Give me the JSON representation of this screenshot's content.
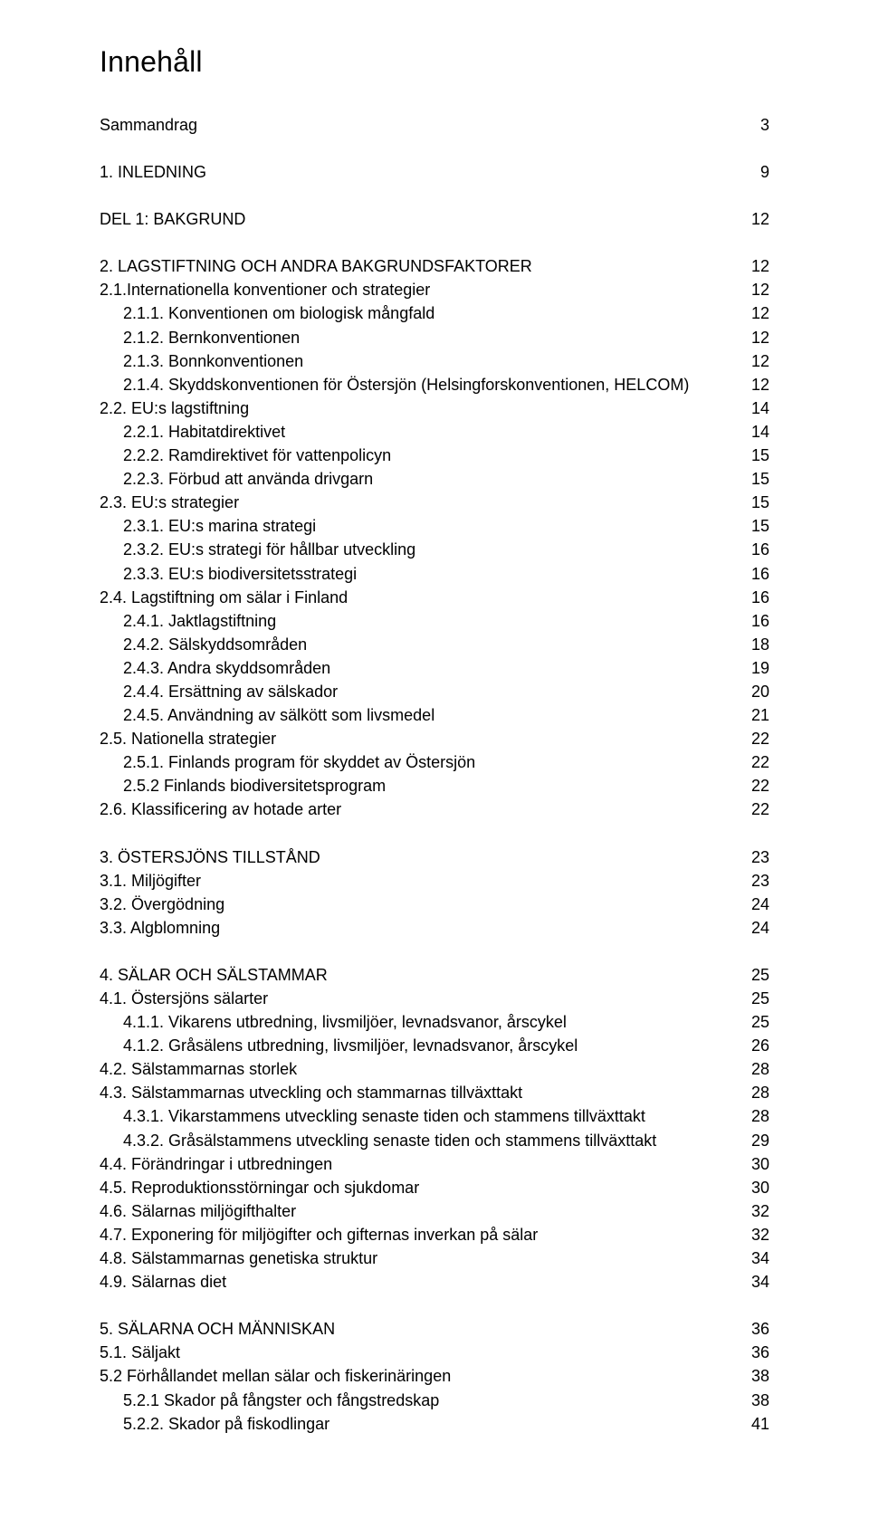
{
  "title": "Innehåll",
  "font": {
    "body_pt": 18,
    "title_pt": 32,
    "color": "#000000",
    "background": "#ffffff"
  },
  "toc": [
    {
      "label": "Sammandrag",
      "page": 3,
      "indent": 0,
      "gap_after": true
    },
    {
      "label": "1. INLEDNING",
      "page": 9,
      "indent": 0,
      "gap_after": true
    },
    {
      "label": "DEL 1: BAKGRUND",
      "page": 12,
      "indent": 0,
      "gap_after": true
    },
    {
      "label": "2. LAGSTIFTNING OCH ANDRA BAKGRUNDSFAKTORER",
      "page": 12,
      "indent": 0
    },
    {
      "label": "2.1.Internationella konventioner och strategier",
      "page": 12,
      "indent": 0
    },
    {
      "label": "2.1.1. Konventionen om biologisk mångfald",
      "page": 12,
      "indent": 1
    },
    {
      "label": "2.1.2. Bernkonventionen",
      "page": 12,
      "indent": 1
    },
    {
      "label": "2.1.3. Bonnkonventionen",
      "page": 12,
      "indent": 1
    },
    {
      "label": "2.1.4. Skyddskonventionen för Östersjön (Helsingforskonventionen, HELCOM)",
      "page": 12,
      "indent": 1
    },
    {
      "label": "2.2. EU:s lagstiftning",
      "page": 14,
      "indent": 0
    },
    {
      "label": "2.2.1. Habitatdirektivet",
      "page": 14,
      "indent": 1
    },
    {
      "label": "2.2.2. Ramdirektivet för vattenpolicyn",
      "page": 15,
      "indent": 1
    },
    {
      "label": "2.2.3. Förbud att använda drivgarn",
      "page": 15,
      "indent": 1
    },
    {
      "label": "2.3. EU:s strategier",
      "page": 15,
      "indent": 0
    },
    {
      "label": "2.3.1. EU:s marina strategi",
      "page": 15,
      "indent": 1
    },
    {
      "label": "2.3.2. EU:s strategi för hållbar utveckling",
      "page": 16,
      "indent": 1
    },
    {
      "label": "2.3.3. EU:s biodiversitetsstrategi",
      "page": 16,
      "indent": 1
    },
    {
      "label": "2.4. Lagstiftning om sälar i Finland",
      "page": 16,
      "indent": 0
    },
    {
      "label": "2.4.1. Jaktlagstiftning",
      "page": 16,
      "indent": 1
    },
    {
      "label": "2.4.2. Sälskyddsområden",
      "page": 18,
      "indent": 1
    },
    {
      "label": "2.4.3. Andra skyddsområden",
      "page": 19,
      "indent": 1
    },
    {
      "label": "2.4.4. Ersättning av sälskador",
      "page": 20,
      "indent": 1
    },
    {
      "label": "2.4.5. Användning av sälkött som livsmedel",
      "page": 21,
      "indent": 1
    },
    {
      "label": "2.5. Nationella strategier",
      "page": 22,
      "indent": 0
    },
    {
      "label": "2.5.1. Finlands program för skyddet av Östersjön",
      "page": 22,
      "indent": 1
    },
    {
      "label": "2.5.2 Finlands biodiversitetsprogram",
      "page": 22,
      "indent": 1
    },
    {
      "label": "2.6. Klassificering av hotade arter",
      "page": 22,
      "indent": 0,
      "gap_after": true
    },
    {
      "label": "3. ÖSTERSJÖNS TILLSTÅND",
      "page": 23,
      "indent": 0
    },
    {
      "label": "3.1. Miljögifter",
      "page": 23,
      "indent": 0
    },
    {
      "label": "3.2. Övergödning",
      "page": 24,
      "indent": 0
    },
    {
      "label": "3.3. Algblomning",
      "page": 24,
      "indent": 0,
      "gap_after": true
    },
    {
      "label": "4. SÄLAR OCH SÄLSTAMMAR",
      "page": 25,
      "indent": 0
    },
    {
      "label": "4.1. Östersjöns sälarter",
      "page": 25,
      "indent": 0
    },
    {
      "label": "4.1.1. Vikarens utbredning, livsmiljöer, levnadsvanor, årscykel",
      "page": 25,
      "indent": 1
    },
    {
      "label": "4.1.2. Gråsälens utbredning, livsmiljöer, levnadsvanor, årscykel",
      "page": 26,
      "indent": 1
    },
    {
      "label": "4.2. Sälstammarnas storlek",
      "page": 28,
      "indent": 0
    },
    {
      "label": "4.3. Sälstammarnas utveckling och stammarnas tillväxttakt",
      "page": 28,
      "indent": 0
    },
    {
      "label": "4.3.1. Vikarstammens utveckling senaste tiden och stammens tillväxttakt",
      "page": 28,
      "indent": 1
    },
    {
      "label": "4.3.2. Gråsälstammens utveckling senaste tiden och stammens tillväxttakt",
      "page": 29,
      "indent": 1
    },
    {
      "label": "4.4. Förändringar i utbredningen",
      "page": 30,
      "indent": 0
    },
    {
      "label": "4.5. Reproduktionsstörningar och sjukdomar",
      "page": 30,
      "indent": 0
    },
    {
      "label": "4.6. Sälarnas miljögifthalter",
      "page": 32,
      "indent": 0
    },
    {
      "label": "4.7. Exponering för miljögifter och gifternas inverkan på sälar",
      "page": 32,
      "indent": 0
    },
    {
      "label": "4.8. Sälstammarnas genetiska struktur",
      "page": 34,
      "indent": 0
    },
    {
      "label": "4.9. Sälarnas diet",
      "page": 34,
      "indent": 0,
      "gap_after": true
    },
    {
      "label": "5. SÄLARNA OCH MÄNNISKAN",
      "page": 36,
      "indent": 0
    },
    {
      "label": "5.1. Säljakt",
      "page": 36,
      "indent": 0
    },
    {
      "label": "5.2 Förhållandet mellan sälar och fiskerinäringen",
      "page": 38,
      "indent": 0
    },
    {
      "label": "5.2.1 Skador på fångster och fångstredskap",
      "page": 38,
      "indent": 1
    },
    {
      "label": "5.2.2. Skador på fiskodlingar",
      "page": 41,
      "indent": 1
    }
  ]
}
